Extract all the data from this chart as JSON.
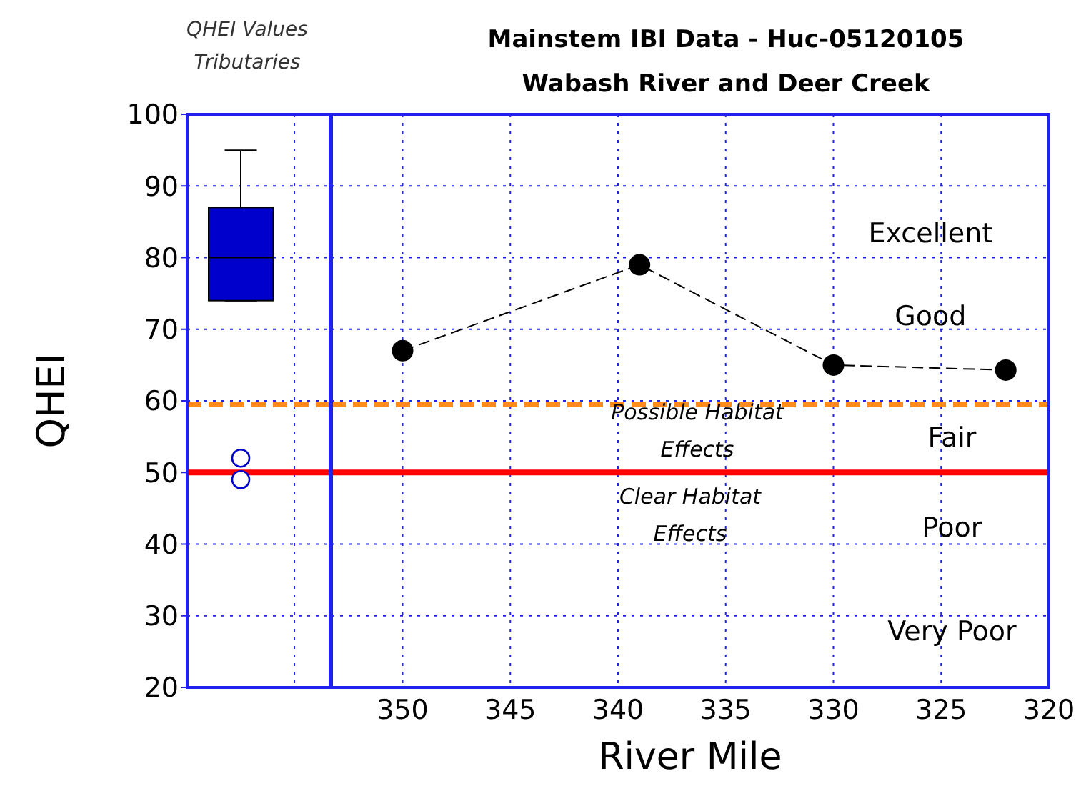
{
  "chart_data": [
    {
      "type": "box",
      "title": "QHEI Values\nTributaries",
      "ylabel": "QHEI",
      "categories": [
        null
      ],
      "color": "#0000cc",
      "boxes": [
        {
          "low": 74,
          "q1": 74,
          "median": 80,
          "q3": 87,
          "high": 95,
          "outliers": [
            49,
            52
          ]
        }
      ],
      "ylim": [
        20,
        100
      ],
      "yticks": [
        20,
        30,
        40,
        50,
        60,
        70,
        80,
        90,
        100
      ],
      "grid": "y",
      "ref_lines": [
        {
          "axis": "y",
          "value": 59.5,
          "color": "#ff8c1a",
          "line_style": "dashed"
        },
        {
          "axis": "y",
          "value": 50,
          "color": "#ff0000",
          "line_style": "solid"
        }
      ]
    },
    {
      "type": "line",
      "title": "Mainstem IBI Data - Huc-05120105",
      "subtitle": "Wabash River and Deer Creek",
      "xlabel": "River Mile",
      "x": [
        350,
        339,
        330,
        322
      ],
      "series": [
        {
          "color": "#000000",
          "values": [
            67,
            79,
            65,
            64.3
          ]
        }
      ],
      "marker": "circle",
      "line_style": "dashed",
      "xlim": [
        353.3,
        320
      ],
      "xticks": [
        350,
        345,
        340,
        335,
        330,
        325,
        320
      ],
      "ylim": [
        20,
        100
      ],
      "yticks": [
        20,
        30,
        40,
        50,
        60,
        70,
        80,
        90,
        100
      ],
      "tick_labels": "x",
      "grid": true,
      "ref_lines": [
        {
          "axis": "y",
          "value": 59.5,
          "color": "#ff8c1a",
          "line_style": "dashed"
        },
        {
          "axis": "y",
          "value": 50,
          "color": "#ff0000",
          "line_style": "solid"
        }
      ],
      "annotations": [
        "Excellent",
        "Good",
        "Fair",
        "Poor",
        "Very Poor",
        "Possible Habitat\nEffects",
        "Clear Habitat\nEffects"
      ]
    }
  ]
}
